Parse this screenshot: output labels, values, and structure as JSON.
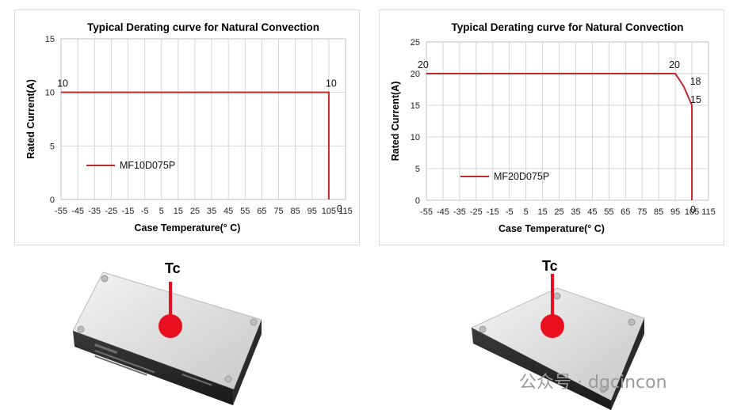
{
  "chart_data": [
    {
      "type": "line",
      "title": "Typical Derating curve for Natural Convection",
      "xlabel": "Case Temperature(° C)",
      "ylabel": "Rated Current(A)",
      "xlim": [
        -55,
        115
      ],
      "ylim": [
        0,
        15
      ],
      "x_ticks": [
        "-55",
        "-45",
        "-35",
        "-25",
        "-15",
        "-5",
        "5",
        "15",
        "25",
        "35",
        "45",
        "55",
        "65",
        "75",
        "85",
        "95",
        "105",
        "115"
      ],
      "y_ticks": [
        "0",
        "5",
        "10",
        "15"
      ],
      "grid": true,
      "legend": "left",
      "color": "#c0282d",
      "series": [
        {
          "name": "MF10D075P",
          "x": [
            -55,
            105,
            105
          ],
          "y": [
            10,
            10,
            0
          ]
        }
      ],
      "annotations": [
        {
          "text": "10",
          "x": -45,
          "y": 10
        },
        {
          "text": "10",
          "x": 105,
          "y": 10
        },
        {
          "text": "0",
          "x": 105,
          "y": 0
        }
      ]
    },
    {
      "type": "line",
      "title": "Typical Derating curve for Natural Convection",
      "xlabel": "Case Temperature(° C)",
      "ylabel": "Rated Current(A)",
      "xlim": [
        -55,
        115
      ],
      "ylim": [
        0,
        25
      ],
      "x_ticks": [
        "-55",
        "-45",
        "-35",
        "-25",
        "-15",
        "-5",
        "5",
        "15",
        "25",
        "35",
        "45",
        "55",
        "65",
        "75",
        "85",
        "95",
        "105",
        "115"
      ],
      "y_ticks": [
        "0",
        "5",
        "10",
        "15",
        "20",
        "25"
      ],
      "grid": true,
      "legend": "left",
      "color": "#c0282d",
      "series": [
        {
          "name": "MF20D075P",
          "x": [
            -55,
            95,
            100,
            105,
            105
          ],
          "y": [
            20,
            20,
            18,
            15,
            0
          ]
        }
      ],
      "annotations": [
        {
          "text": "20",
          "x": -45,
          "y": 20
        },
        {
          "text": "20",
          "x": 95,
          "y": 20
        },
        {
          "text": "18",
          "x": 100,
          "y": 18
        },
        {
          "text": "15",
          "x": 105,
          "y": 15
        },
        {
          "text": "0",
          "x": 105,
          "y": 0
        }
      ]
    }
  ],
  "photos": {
    "left_label": "Tc",
    "right_label": "Tc",
    "marker_color": "#e8101e",
    "watermark": "公众号 · dgcincon"
  }
}
